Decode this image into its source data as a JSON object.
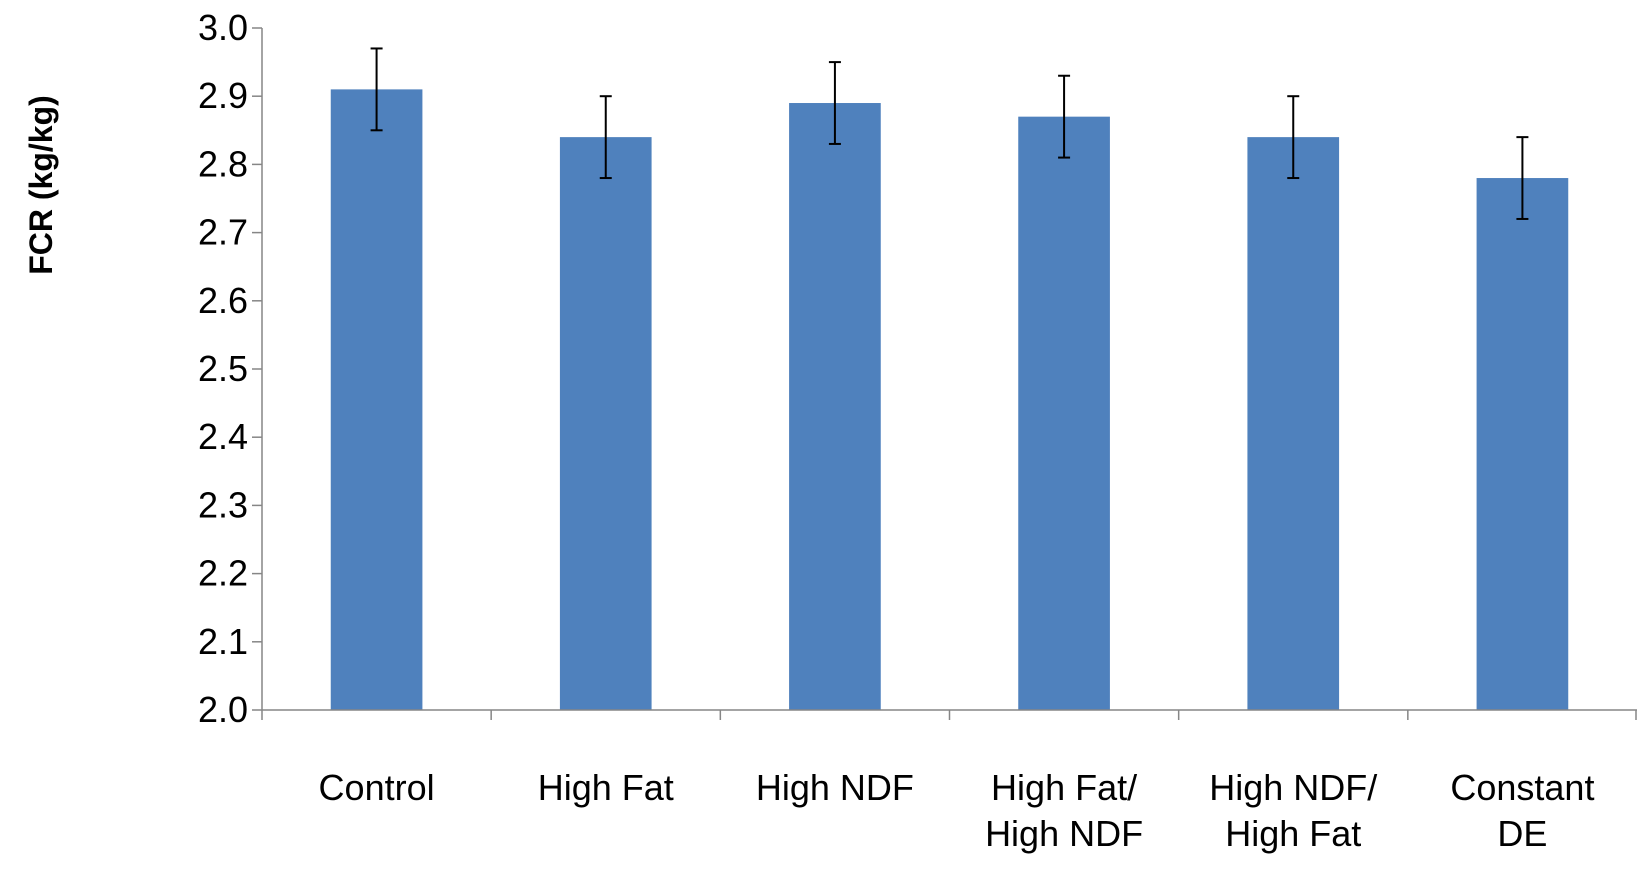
{
  "chart_data": {
    "type": "bar",
    "title": "",
    "xlabel": "",
    "ylabel": "FCR (kg/kg)",
    "ylim": [
      2.0,
      3.0
    ],
    "yticks": [
      "2.0",
      "2.1",
      "2.2",
      "2.3",
      "2.4",
      "2.5",
      "2.6",
      "2.7",
      "2.8",
      "2.9",
      "3.0"
    ],
    "categories": [
      [
        "Control"
      ],
      [
        "High Fat"
      ],
      [
        "High NDF"
      ],
      [
        "High Fat/",
        "High NDF"
      ],
      [
        "High NDF/",
        "High Fat"
      ],
      [
        "Constant",
        "DE"
      ]
    ],
    "values": [
      2.91,
      2.84,
      2.89,
      2.87,
      2.84,
      2.78
    ],
    "error": [
      0.06,
      0.06,
      0.06,
      0.06,
      0.06,
      0.06
    ],
    "grid": false,
    "legend": "none",
    "colors": {
      "bar": "#4F81BD",
      "axis": "#868686",
      "error_bar": "#000000"
    }
  }
}
